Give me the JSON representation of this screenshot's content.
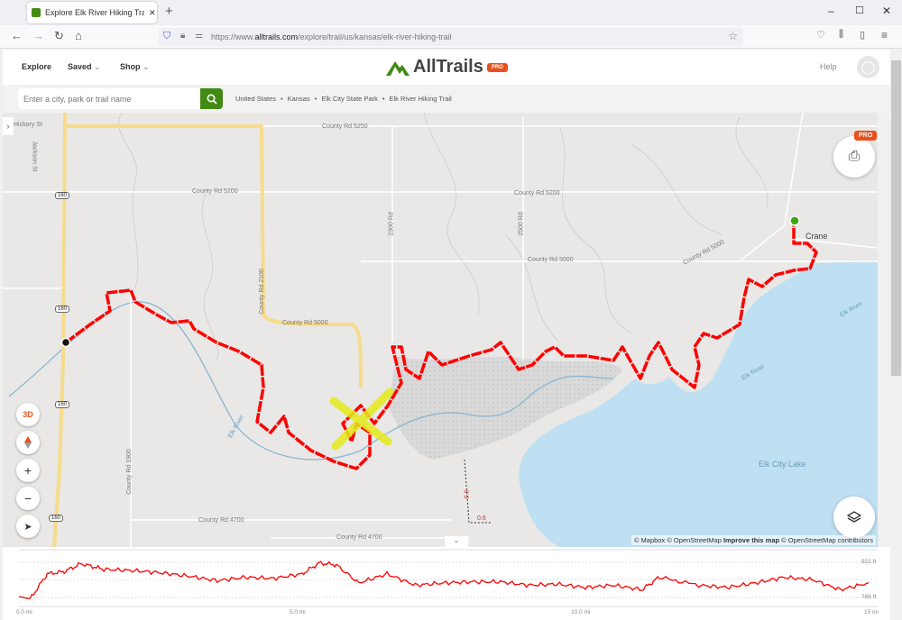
{
  "browser": {
    "tab_title": "Explore Elk River Hiking Trail | AllTrails",
    "url_prefix": "https://www.",
    "url_domain": "alltrails.com",
    "url_path": "/explore/trail/us/kansas/elk-river-hiking-trail"
  },
  "header": {
    "nav": [
      "Explore",
      "Saved",
      "Shop"
    ],
    "logo": "AllTrails",
    "pro_badge": "PRO",
    "help": "Help"
  },
  "search": {
    "placeholder": "Enter a city, park or trail name"
  },
  "breadcrumbs": [
    "United States",
    "Kansas",
    "Elk City State Park",
    "Elk River Hiking Trail"
  ],
  "map": {
    "labels": {
      "rd5250": "County Rd 5250",
      "rd5200a": "County Rd 5200",
      "rd5200b": "County Rd 5200",
      "rd5000a": "County Rd 5000",
      "rd5000b": "County Rd 5000",
      "rd5000c": "County Rd 5000",
      "rd2100": "County Rd 2100",
      "rd2300": "2300 Rd",
      "rd2500": "2500 Rd",
      "rd1900": "County Rd 1900",
      "rd4700a": "County Rd 4700",
      "rd4700b": "County Rd 4700",
      "hickory": "Hickory St",
      "jackson": "Jackson St",
      "crane": "Crane",
      "elkriver1": "Elk River",
      "elkriver2": "Elk River",
      "elkriver3": "Elk River",
      "lake": "Elk City Lake",
      "us160": "160",
      "mile06a": "0.6",
      "mile06b": "0.6"
    },
    "controls": {
      "three_d": "3D",
      "zoom_in": "+",
      "zoom_out": "−"
    },
    "print_pro": "PRO",
    "attribution": {
      "mapbox": "© Mapbox",
      "osm": "© OpenStreetMap",
      "improve": "Improve this map",
      "osm2": "© OpenStreetMap contributors"
    },
    "colors": {
      "trail": "#ff0000",
      "water": "#bfe0f2",
      "road_major": "#f6dc8a",
      "start": "#3aa610"
    }
  },
  "chart_data": {
    "type": "line",
    "x_unit": "mi",
    "y_unit": "ft",
    "xlim": [
      0,
      15
    ],
    "ylim": [
      766,
      921
    ],
    "x_ticks": [
      "0.0 mi",
      "5.0 mi",
      "10.0 mi",
      "15 mi"
    ],
    "y_ticks": [
      "921 ft",
      "766 ft"
    ],
    "x": [
      0,
      0.2,
      0.5,
      0.8,
      1.1,
      1.5,
      2,
      2.5,
      3,
      3.5,
      4,
      4.5,
      5,
      5.3,
      5.6,
      6,
      6.5,
      7,
      7.5,
      8,
      8.5,
      9,
      9.5,
      10,
      10.5,
      11,
      11.3,
      12,
      12.5,
      13,
      13.5,
      14,
      14.5,
      15
    ],
    "y": [
      770,
      760,
      870,
      880,
      915,
      890,
      885,
      875,
      860,
      840,
      855,
      850,
      870,
      918,
      910,
      830,
      870,
      820,
      830,
      835,
      835,
      820,
      825,
      810,
      820,
      800,
      855,
      820,
      810,
      830,
      855,
      845,
      800,
      830
    ],
    "color": "#ff0000"
  }
}
